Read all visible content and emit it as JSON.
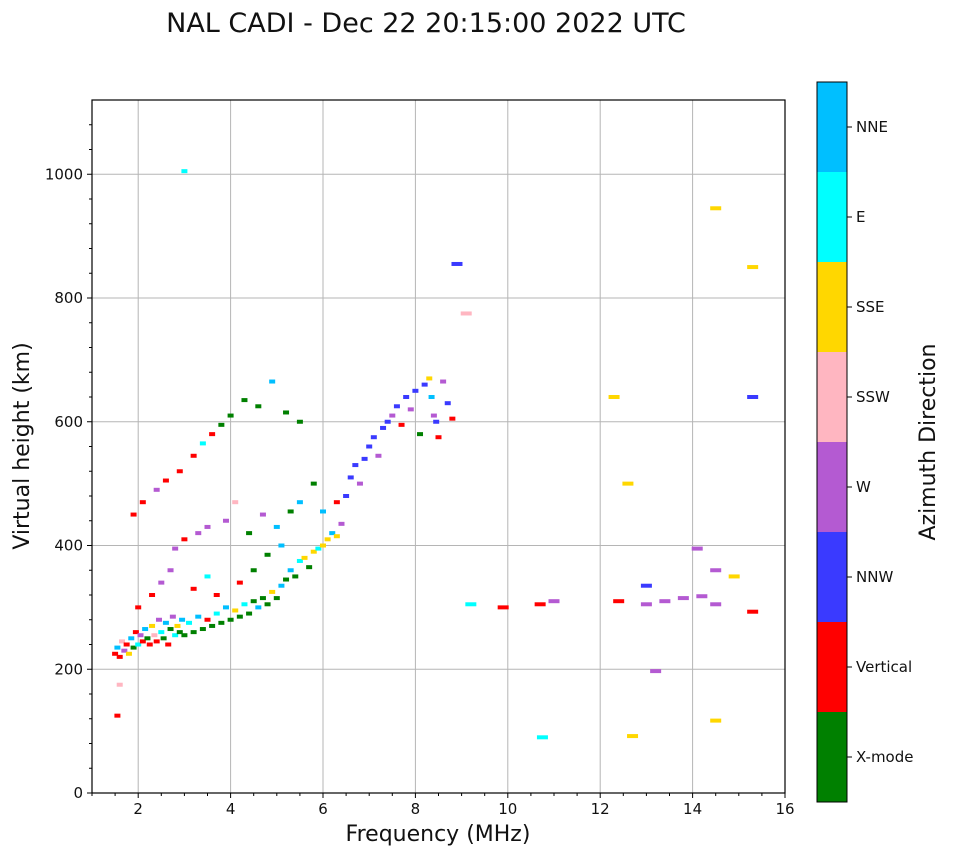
{
  "chart_data": {
    "type": "scatter",
    "title": "NAL CADI - Dec 22 20:15:00 2022 UTC",
    "xlabel": "Frequency (MHz)",
    "ylabel": "Virtual height (km)",
    "colorbar_label": "Azimuth Direction",
    "xlim": [
      1,
      16
    ],
    "ylim": [
      0,
      1120
    ],
    "grid": true,
    "xticks": [
      2,
      4,
      6,
      8,
      10,
      12,
      14,
      16
    ],
    "yticks": [
      0,
      200,
      400,
      600,
      800,
      1000
    ],
    "legend": [
      {
        "key": "xmode",
        "name": "X-mode",
        "color": "#008000"
      },
      {
        "key": "vertical",
        "name": "Vertical",
        "color": "#ff0000"
      },
      {
        "key": "nnw",
        "name": "NNW",
        "color": "#3a3aff"
      },
      {
        "key": "w",
        "name": "W",
        "color": "#b45ad2"
      },
      {
        "key": "ssw",
        "name": "SSW",
        "color": "#ffb6c1"
      },
      {
        "key": "sse",
        "name": "SSE",
        "color": "#ffd700"
      },
      {
        "key": "e",
        "name": "E",
        "color": "#00ffff"
      },
      {
        "key": "nne",
        "name": "NNE",
        "color": "#00bfff"
      }
    ],
    "points": [
      {
        "x": 1.5,
        "y": 225,
        "dir": "vertical"
      },
      {
        "x": 1.55,
        "y": 235,
        "dir": "nne"
      },
      {
        "x": 1.6,
        "y": 220,
        "dir": "vertical"
      },
      {
        "x": 1.65,
        "y": 245,
        "dir": "ssw"
      },
      {
        "x": 1.7,
        "y": 230,
        "dir": "w"
      },
      {
        "x": 1.75,
        "y": 240,
        "dir": "vertical"
      },
      {
        "x": 1.8,
        "y": 225,
        "dir": "sse"
      },
      {
        "x": 1.85,
        "y": 250,
        "dir": "nne"
      },
      {
        "x": 1.9,
        "y": 235,
        "dir": "xmode"
      },
      {
        "x": 1.95,
        "y": 260,
        "dir": "vertical"
      },
      {
        "x": 2.0,
        "y": 240,
        "dir": "e"
      },
      {
        "x": 2.05,
        "y": 255,
        "dir": "w"
      },
      {
        "x": 2.1,
        "y": 245,
        "dir": "vertical"
      },
      {
        "x": 2.15,
        "y": 265,
        "dir": "nne"
      },
      {
        "x": 2.2,
        "y": 250,
        "dir": "xmode"
      },
      {
        "x": 2.25,
        "y": 240,
        "dir": "vertical"
      },
      {
        "x": 2.3,
        "y": 270,
        "dir": "sse"
      },
      {
        "x": 2.35,
        "y": 255,
        "dir": "ssw"
      },
      {
        "x": 2.4,
        "y": 245,
        "dir": "vertical"
      },
      {
        "x": 2.45,
        "y": 280,
        "dir": "w"
      },
      {
        "x": 2.5,
        "y": 260,
        "dir": "e"
      },
      {
        "x": 2.55,
        "y": 250,
        "dir": "xmode"
      },
      {
        "x": 2.6,
        "y": 275,
        "dir": "nne"
      },
      {
        "x": 2.65,
        "y": 240,
        "dir": "vertical"
      },
      {
        "x": 2.7,
        "y": 265,
        "dir": "xmode"
      },
      {
        "x": 2.75,
        "y": 285,
        "dir": "w"
      },
      {
        "x": 2.8,
        "y": 255,
        "dir": "e"
      },
      {
        "x": 2.85,
        "y": 270,
        "dir": "sse"
      },
      {
        "x": 2.9,
        "y": 260,
        "dir": "xmode"
      },
      {
        "x": 2.95,
        "y": 280,
        "dir": "nne"
      },
      {
        "x": 3.0,
        "y": 255,
        "dir": "xmode"
      },
      {
        "x": 3.1,
        "y": 275,
        "dir": "e"
      },
      {
        "x": 3.2,
        "y": 260,
        "dir": "xmode"
      },
      {
        "x": 3.3,
        "y": 285,
        "dir": "nne"
      },
      {
        "x": 3.4,
        "y": 265,
        "dir": "xmode"
      },
      {
        "x": 3.5,
        "y": 280,
        "dir": "vertical"
      },
      {
        "x": 3.6,
        "y": 270,
        "dir": "xmode"
      },
      {
        "x": 3.7,
        "y": 290,
        "dir": "e"
      },
      {
        "x": 3.8,
        "y": 275,
        "dir": "xmode"
      },
      {
        "x": 3.9,
        "y": 300,
        "dir": "nne"
      },
      {
        "x": 4.0,
        "y": 280,
        "dir": "xmode"
      },
      {
        "x": 4.1,
        "y": 295,
        "dir": "sse"
      },
      {
        "x": 4.2,
        "y": 285,
        "dir": "xmode"
      },
      {
        "x": 4.3,
        "y": 305,
        "dir": "e"
      },
      {
        "x": 4.4,
        "y": 290,
        "dir": "xmode"
      },
      {
        "x": 4.5,
        "y": 310,
        "dir": "xmode"
      },
      {
        "x": 4.6,
        "y": 300,
        "dir": "nne"
      },
      {
        "x": 4.7,
        "y": 315,
        "dir": "xmode"
      },
      {
        "x": 4.8,
        "y": 305,
        "dir": "xmode"
      },
      {
        "x": 4.9,
        "y": 325,
        "dir": "sse"
      },
      {
        "x": 5.0,
        "y": 315,
        "dir": "xmode"
      },
      {
        "x": 5.1,
        "y": 335,
        "dir": "nne"
      },
      {
        "x": 5.2,
        "y": 345,
        "dir": "xmode"
      },
      {
        "x": 5.3,
        "y": 360,
        "dir": "nne"
      },
      {
        "x": 5.4,
        "y": 350,
        "dir": "xmode"
      },
      {
        "x": 5.5,
        "y": 375,
        "dir": "e"
      },
      {
        "x": 5.6,
        "y": 380,
        "dir": "sse"
      },
      {
        "x": 5.7,
        "y": 365,
        "dir": "xmode"
      },
      {
        "x": 5.8,
        "y": 390,
        "dir": "sse"
      },
      {
        "x": 5.9,
        "y": 395,
        "dir": "e"
      },
      {
        "x": 6.0,
        "y": 400,
        "dir": "sse"
      },
      {
        "x": 6.1,
        "y": 410,
        "dir": "sse"
      },
      {
        "x": 6.2,
        "y": 420,
        "dir": "nne"
      },
      {
        "x": 6.3,
        "y": 415,
        "dir": "sse"
      },
      {
        "x": 6.4,
        "y": 435,
        "dir": "w"
      },
      {
        "x": 6.5,
        "y": 480,
        "dir": "nnw"
      },
      {
        "x": 6.6,
        "y": 510,
        "dir": "nnw"
      },
      {
        "x": 6.7,
        "y": 530,
        "dir": "nnw"
      },
      {
        "x": 6.8,
        "y": 500,
        "dir": "w"
      },
      {
        "x": 6.9,
        "y": 540,
        "dir": "nnw"
      },
      {
        "x": 7.0,
        "y": 560,
        "dir": "nnw"
      },
      {
        "x": 7.1,
        "y": 575,
        "dir": "nnw"
      },
      {
        "x": 7.2,
        "y": 545,
        "dir": "w"
      },
      {
        "x": 7.3,
        "y": 590,
        "dir": "nnw"
      },
      {
        "x": 7.4,
        "y": 600,
        "dir": "nnw"
      },
      {
        "x": 7.5,
        "y": 610,
        "dir": "w"
      },
      {
        "x": 7.6,
        "y": 625,
        "dir": "nnw"
      },
      {
        "x": 7.7,
        "y": 595,
        "dir": "vertical"
      },
      {
        "x": 7.8,
        "y": 640,
        "dir": "nnw"
      },
      {
        "x": 7.9,
        "y": 620,
        "dir": "w"
      },
      {
        "x": 8.0,
        "y": 650,
        "dir": "nnw"
      },
      {
        "x": 8.1,
        "y": 580,
        "dir": "xmode"
      },
      {
        "x": 8.2,
        "y": 660,
        "dir": "nnw"
      },
      {
        "x": 8.3,
        "y": 670,
        "dir": "sse"
      },
      {
        "x": 8.35,
        "y": 640,
        "dir": "nne"
      },
      {
        "x": 8.4,
        "y": 610,
        "dir": "w"
      },
      {
        "x": 8.45,
        "y": 600,
        "dir": "nnw"
      },
      {
        "x": 8.5,
        "y": 575,
        "dir": "vertical"
      },
      {
        "x": 8.6,
        "y": 665,
        "dir": "w"
      },
      {
        "x": 8.7,
        "y": 630,
        "dir": "nnw"
      },
      {
        "x": 8.8,
        "y": 605,
        "dir": "vertical"
      },
      {
        "x": 8.9,
        "y": 855,
        "dir": "nnw"
      },
      {
        "x": 9.1,
        "y": 775,
        "dir": "ssw"
      },
      {
        "x": 9.2,
        "y": 305,
        "dir": "e"
      },
      {
        "x": 9.9,
        "y": 300,
        "dir": "vertical"
      },
      {
        "x": 10.7,
        "y": 305,
        "dir": "vertical"
      },
      {
        "x": 11.0,
        "y": 310,
        "dir": "w"
      },
      {
        "x": 10.75,
        "y": 90,
        "dir": "e"
      },
      {
        "x": 12.3,
        "y": 640,
        "dir": "sse"
      },
      {
        "x": 12.4,
        "y": 310,
        "dir": "vertical"
      },
      {
        "x": 12.6,
        "y": 500,
        "dir": "sse"
      },
      {
        "x": 12.7,
        "y": 92,
        "dir": "sse"
      },
      {
        "x": 13.0,
        "y": 335,
        "dir": "nnw"
      },
      {
        "x": 13.0,
        "y": 305,
        "dir": "w"
      },
      {
        "x": 13.2,
        "y": 197,
        "dir": "w"
      },
      {
        "x": 13.4,
        "y": 310,
        "dir": "w"
      },
      {
        "x": 13.8,
        "y": 315,
        "dir": "w"
      },
      {
        "x": 14.1,
        "y": 395,
        "dir": "w"
      },
      {
        "x": 14.2,
        "y": 318,
        "dir": "w"
      },
      {
        "x": 14.5,
        "y": 945,
        "dir": "sse"
      },
      {
        "x": 14.5,
        "y": 360,
        "dir": "w"
      },
      {
        "x": 14.5,
        "y": 305,
        "dir": "w"
      },
      {
        "x": 14.5,
        "y": 117,
        "dir": "sse"
      },
      {
        "x": 14.9,
        "y": 350,
        "dir": "sse"
      },
      {
        "x": 15.3,
        "y": 850,
        "dir": "sse"
      },
      {
        "x": 15.3,
        "y": 640,
        "dir": "nnw"
      },
      {
        "x": 15.3,
        "y": 293,
        "dir": "vertical"
      },
      {
        "x": 1.55,
        "y": 125,
        "dir": "vertical"
      },
      {
        "x": 1.6,
        "y": 175,
        "dir": "ssw"
      },
      {
        "x": 3.0,
        "y": 1005,
        "dir": "e"
      },
      {
        "x": 4.9,
        "y": 665,
        "dir": "nne"
      },
      {
        "x": 1.9,
        "y": 450,
        "dir": "vertical"
      },
      {
        "x": 2.1,
        "y": 470,
        "dir": "vertical"
      },
      {
        "x": 2.4,
        "y": 490,
        "dir": "w"
      },
      {
        "x": 2.6,
        "y": 505,
        "dir": "vertical"
      },
      {
        "x": 2.9,
        "y": 520,
        "dir": "vertical"
      },
      {
        "x": 3.2,
        "y": 545,
        "dir": "vertical"
      },
      {
        "x": 3.4,
        "y": 565,
        "dir": "e"
      },
      {
        "x": 3.6,
        "y": 580,
        "dir": "vertical"
      },
      {
        "x": 3.8,
        "y": 595,
        "dir": "xmode"
      },
      {
        "x": 4.0,
        "y": 610,
        "dir": "xmode"
      },
      {
        "x": 4.3,
        "y": 635,
        "dir": "xmode"
      },
      {
        "x": 4.6,
        "y": 625,
        "dir": "xmode"
      },
      {
        "x": 5.2,
        "y": 615,
        "dir": "xmode"
      },
      {
        "x": 5.5,
        "y": 600,
        "dir": "xmode"
      },
      {
        "x": 2.0,
        "y": 300,
        "dir": "vertical"
      },
      {
        "x": 2.3,
        "y": 320,
        "dir": "vertical"
      },
      {
        "x": 2.5,
        "y": 340,
        "dir": "w"
      },
      {
        "x": 2.7,
        "y": 360,
        "dir": "w"
      },
      {
        "x": 2.8,
        "y": 395,
        "dir": "w"
      },
      {
        "x": 3.0,
        "y": 410,
        "dir": "vertical"
      },
      {
        "x": 3.3,
        "y": 420,
        "dir": "w"
      },
      {
        "x": 3.5,
        "y": 430,
        "dir": "w"
      },
      {
        "x": 3.9,
        "y": 440,
        "dir": "w"
      },
      {
        "x": 4.1,
        "y": 470,
        "dir": "ssw"
      },
      {
        "x": 4.4,
        "y": 420,
        "dir": "xmode"
      },
      {
        "x": 4.7,
        "y": 450,
        "dir": "w"
      },
      {
        "x": 5.0,
        "y": 430,
        "dir": "nne"
      },
      {
        "x": 5.3,
        "y": 455,
        "dir": "xmode"
      },
      {
        "x": 5.5,
        "y": 470,
        "dir": "nne"
      },
      {
        "x": 5.8,
        "y": 500,
        "dir": "xmode"
      },
      {
        "x": 6.0,
        "y": 455,
        "dir": "nne"
      },
      {
        "x": 6.3,
        "y": 470,
        "dir": "vertical"
      },
      {
        "x": 3.2,
        "y": 330,
        "dir": "vertical"
      },
      {
        "x": 3.5,
        "y": 350,
        "dir": "e"
      },
      {
        "x": 3.7,
        "y": 320,
        "dir": "vertical"
      },
      {
        "x": 4.2,
        "y": 340,
        "dir": "vertical"
      },
      {
        "x": 4.5,
        "y": 360,
        "dir": "xmode"
      },
      {
        "x": 4.8,
        "y": 385,
        "dir": "xmode"
      },
      {
        "x": 5.1,
        "y": 400,
        "dir": "nne"
      }
    ]
  }
}
